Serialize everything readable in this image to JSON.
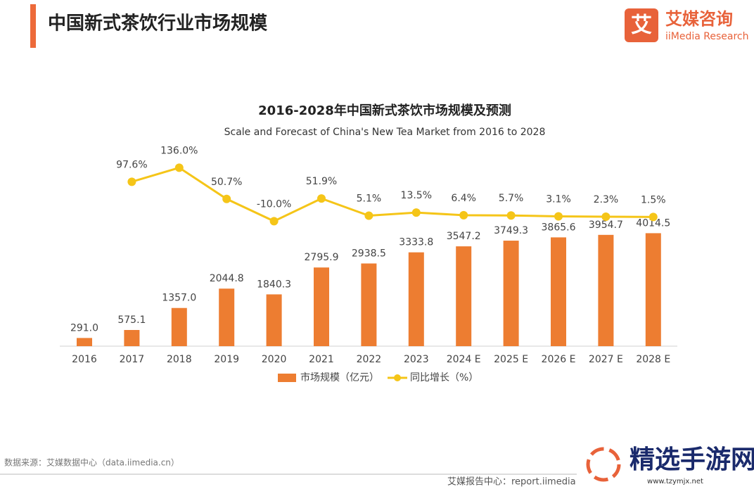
{
  "header": {
    "title": "中国新式茶饮行业市场规模",
    "logo_cn": "艾媒咨询",
    "logo_en": "iiMedia Research",
    "logo_mark": "艾"
  },
  "chart_data": {
    "type": "bar",
    "title": "2016-2028年中国新式茶饮市场规模及预测",
    "subtitle": "Scale and Forecast of China's New Tea Market from 2016 to 2028",
    "categories": [
      "2016",
      "2017",
      "2018",
      "2019",
      "2020",
      "2021",
      "2022",
      "2023",
      "2024 E",
      "2025 E",
      "2026 E",
      "2027 E",
      "2028 E"
    ],
    "ylim": [
      0,
      4500
    ],
    "y2lim": [
      -40,
      200
    ],
    "series": [
      {
        "name": "市场规模（亿元）",
        "type": "bar",
        "color": "#ed7d31",
        "values": [
          291.0,
          575.1,
          1357.0,
          2044.8,
          1840.3,
          2795.9,
          2938.5,
          3333.8,
          3547.2,
          3749.3,
          3865.6,
          3954.7,
          4014.5
        ],
        "value_labels": [
          "291.0",
          "575.1",
          "1357.0",
          "2044.8",
          "1840.3",
          "2795.9",
          "2938.5",
          "3333.8",
          "3547.2",
          "3749.3",
          "3865.6",
          "3954.7",
          "4014.5"
        ]
      },
      {
        "name": "同比增长（%）",
        "type": "line",
        "axis": "y2",
        "color": "#f5c518",
        "values": [
          null,
          97.6,
          136.0,
          50.7,
          -10.0,
          51.9,
          5.1,
          13.5,
          6.4,
          5.7,
          3.1,
          2.3,
          1.5
        ],
        "value_labels": [
          null,
          "97.6%",
          "136.0%",
          "50.7%",
          "-10.0%",
          "51.9%",
          "5.1%",
          "13.5%",
          "6.4%",
          "5.7%",
          "3.1%",
          "2.3%",
          "1.5%"
        ]
      }
    ]
  },
  "footer": {
    "source": "数据来源：艾媒数据中心（data.iimedia.cn）",
    "report": "艾媒报告中心：report.iimedia",
    "watermark": "精选手游网",
    "watermark_url": "www.tzymjx.net"
  }
}
